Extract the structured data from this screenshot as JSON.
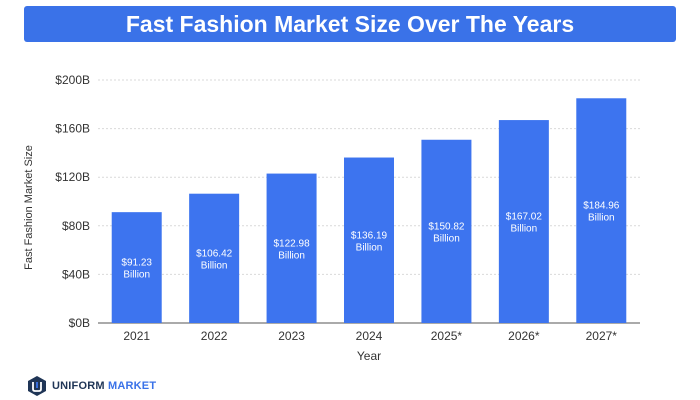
{
  "colors": {
    "accent": "#3a72e8",
    "bar": "#3d74ef",
    "axis_text": "#333333",
    "grid": "#d9d9d9",
    "logo_dark": "#1f3556"
  },
  "logo": {
    "icon": "uniform-market-logo-icon",
    "word1": "UNIFORM",
    "word2": "MARKET"
  },
  "chart_data": {
    "type": "bar",
    "title": "Fast Fashion Market Size Over The Years",
    "xlabel": "Year",
    "ylabel": "Fast Fashion Market Size",
    "categories": [
      "2021",
      "2022",
      "2023",
      "2024",
      "2025*",
      "2026*",
      "2027*"
    ],
    "values": [
      91.23,
      106.42,
      122.98,
      136.19,
      150.82,
      167.02,
      184.96
    ],
    "data_labels": [
      [
        "$91.23",
        "Billion"
      ],
      [
        "$106.42",
        "Billion"
      ],
      [
        "$122.98",
        "Billion"
      ],
      [
        "$136.19",
        "Billion"
      ],
      [
        "$150.82",
        "Billion"
      ],
      [
        "$167.02",
        "Billion"
      ],
      [
        "$184.96",
        "Billion"
      ]
    ],
    "ylim": [
      0,
      200
    ],
    "yticks": [
      0,
      40,
      80,
      120,
      160,
      200
    ],
    "ytick_labels": [
      "$0B",
      "$40B",
      "$80B",
      "$120B",
      "$160B",
      "$200B"
    ],
    "grid": true,
    "legend": "none"
  }
}
